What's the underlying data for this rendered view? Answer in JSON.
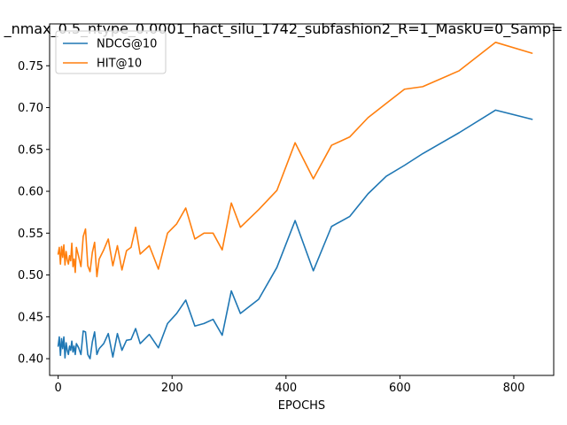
{
  "chart_data": {
    "type": "line",
    "title": "_nmax_0.5_ntype_0.0001_hact_silu_1742_subfashion2_R=1_MaskU=0_Samp=",
    "xlabel": "EPOCHS",
    "ylabel": "",
    "xlim": [
      -15,
      870
    ],
    "ylim": [
      0.38,
      0.8
    ],
    "xticks": [
      0,
      200,
      400,
      600,
      800
    ],
    "yticks": [
      0.4,
      0.45,
      0.5,
      0.55,
      0.6,
      0.65,
      0.7,
      0.75
    ],
    "legend_position": "top-left",
    "grid": false,
    "series": [
      {
        "name": "NDCG@10",
        "color": "#1f77b4",
        "x": [
          0,
          2,
          4,
          6,
          8,
          10,
          12,
          14,
          16,
          18,
          20,
          22,
          24,
          26,
          28,
          30,
          32,
          36,
          40,
          44,
          48,
          52,
          56,
          60,
          64,
          68,
          72,
          80,
          88,
          96,
          104,
          112,
          120,
          128,
          136,
          144,
          160,
          176,
          192,
          208,
          224,
          240,
          256,
          272,
          288,
          304,
          320,
          352,
          384,
          416,
          448,
          480,
          512,
          544,
          576,
          608,
          640,
          704,
          768,
          832
        ],
        "y": [
          0.415,
          0.426,
          0.404,
          0.424,
          0.412,
          0.426,
          0.401,
          0.419,
          0.41,
          0.405,
          0.415,
          0.41,
          0.421,
          0.408,
          0.415,
          0.405,
          0.418,
          0.413,
          0.405,
          0.433,
          0.432,
          0.405,
          0.4,
          0.42,
          0.432,
          0.405,
          0.412,
          0.418,
          0.43,
          0.402,
          0.43,
          0.41,
          0.422,
          0.423,
          0.436,
          0.418,
          0.429,
          0.413,
          0.442,
          0.454,
          0.47,
          0.439,
          0.442,
          0.447,
          0.428,
          0.481,
          0.454,
          0.471,
          0.509,
          0.565,
          0.505,
          0.558,
          0.57,
          0.597,
          0.618,
          0.631,
          0.645,
          0.67,
          0.697,
          0.686
        ]
      },
      {
        "name": "HIT@10",
        "color": "#ff7f0e",
        "x": [
          0,
          2,
          4,
          6,
          8,
          10,
          12,
          14,
          16,
          18,
          20,
          22,
          24,
          26,
          28,
          30,
          32,
          36,
          40,
          44,
          48,
          52,
          56,
          60,
          64,
          68,
          72,
          80,
          88,
          96,
          104,
          112,
          120,
          128,
          136,
          144,
          160,
          176,
          192,
          208,
          224,
          240,
          256,
          272,
          288,
          304,
          320,
          352,
          384,
          416,
          448,
          480,
          512,
          544,
          576,
          608,
          640,
          704,
          768,
          832
        ],
        "y": [
          0.525,
          0.533,
          0.513,
          0.534,
          0.521,
          0.536,
          0.512,
          0.528,
          0.518,
          0.513,
          0.523,
          0.517,
          0.538,
          0.51,
          0.519,
          0.503,
          0.533,
          0.522,
          0.51,
          0.546,
          0.555,
          0.511,
          0.504,
          0.527,
          0.539,
          0.498,
          0.519,
          0.53,
          0.543,
          0.511,
          0.535,
          0.506,
          0.529,
          0.533,
          0.557,
          0.525,
          0.535,
          0.507,
          0.55,
          0.561,
          0.58,
          0.543,
          0.55,
          0.55,
          0.53,
          0.586,
          0.557,
          0.578,
          0.601,
          0.658,
          0.615,
          0.655,
          0.665,
          0.688,
          0.705,
          0.722,
          0.725,
          0.744,
          0.778,
          0.765
        ]
      }
    ]
  }
}
